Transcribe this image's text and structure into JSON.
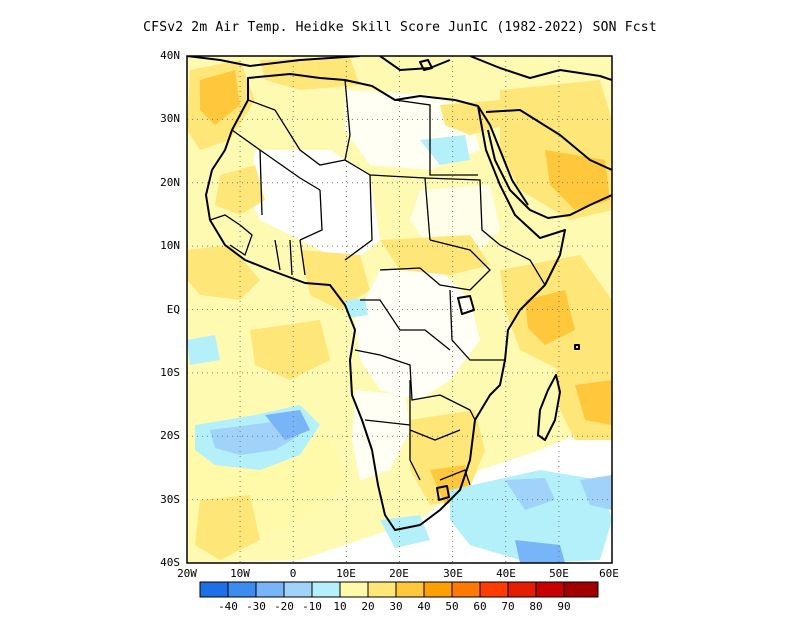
{
  "title": "CFSv2  2m Air Temp. Heidke Skill Score JunIC (1982-2022) SON Fcst",
  "map": {
    "region": "Africa",
    "lat_range": [
      -40,
      40
    ],
    "lon_range": [
      -20,
      60
    ],
    "lat_ticks": [
      "40N",
      "30N",
      "20N",
      "10N",
      "EQ",
      "10S",
      "20S",
      "30S",
      "40S"
    ],
    "lon_ticks": [
      "20W",
      "10W",
      "0",
      "10E",
      "20E",
      "30E",
      "40E",
      "50E",
      "60E"
    ],
    "grid": "dotted"
  },
  "colorbar": {
    "colors": [
      "#1e6ee6",
      "#3c8cf0",
      "#78b4f8",
      "#a0d2fa",
      "#b4f0fa",
      "#fffaaa",
      "#ffe678",
      "#ffc83c",
      "#ffa000",
      "#ff7800",
      "#ff3c00",
      "#e61e00",
      "#c80000",
      "#a00000"
    ],
    "labels": [
      "-40",
      "-30",
      "-20",
      "-10",
      "10",
      "20",
      "30",
      "40",
      "50",
      "60",
      "70",
      "80",
      "90"
    ]
  }
}
